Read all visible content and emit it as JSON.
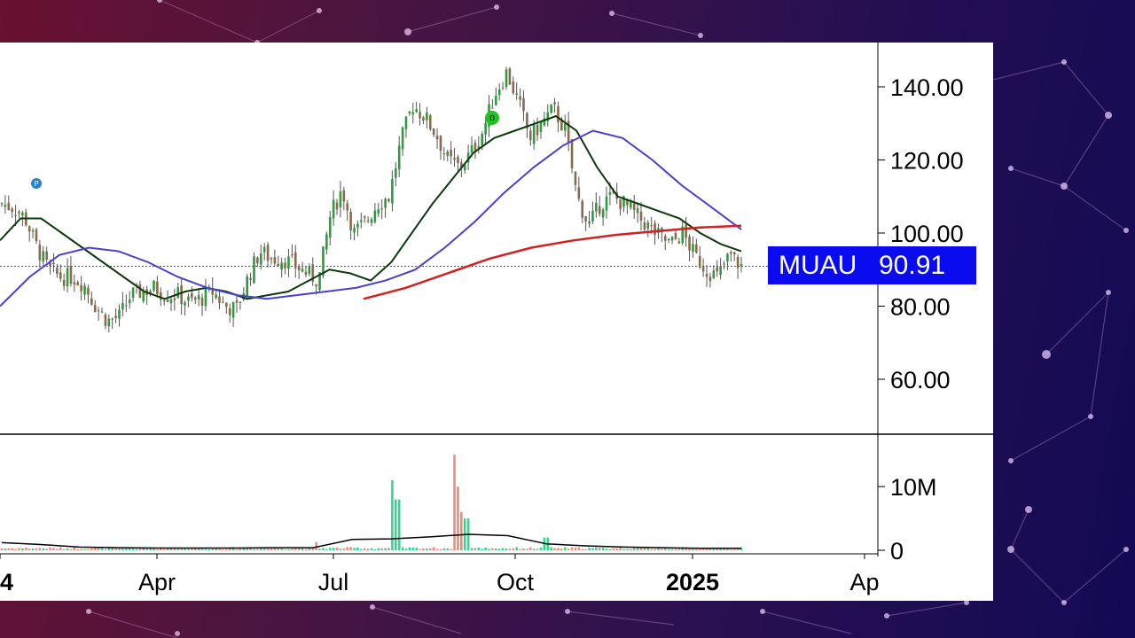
{
  "chart_data": {
    "type": "candlestick",
    "symbol": "MUAU",
    "last_price": "90.91",
    "price_axis": {
      "ticks": [
        "140.00",
        "120.00",
        "100.00",
        "80.00",
        "60.00"
      ],
      "tick_values": [
        140,
        120,
        100,
        80,
        60
      ],
      "range": [
        45,
        150
      ]
    },
    "volume_axis": {
      "ticks": [
        "10M",
        "0"
      ],
      "tick_values": [
        10000000,
        0
      ],
      "range": [
        0,
        16000000
      ]
    },
    "x_axis": {
      "ticks": [
        "4",
        "Apr",
        "Jul",
        "Oct",
        "2025",
        "Ap"
      ],
      "bold_ticks": [
        "4",
        "2025"
      ]
    },
    "markers": [
      {
        "label": "P",
        "color": "#2a7fd6"
      },
      {
        "label": "D",
        "color": "#22c022"
      }
    ],
    "series": [
      {
        "name": "price",
        "kind": "ohlc",
        "approx_close_path": [
          108,
          107,
          104,
          96,
          90,
          88,
          88,
          86,
          80,
          76,
          77,
          83,
          84,
          85,
          83,
          83,
          81,
          82,
          84,
          80,
          79,
          88,
          95,
          93,
          93,
          91,
          89,
          87,
          105,
          112,
          100,
          103,
          108,
          110,
          125,
          135,
          132,
          127,
          120,
          118,
          122,
          128,
          138,
          144,
          136,
          126,
          130,
          134,
          128,
          110,
          102,
          108,
          110,
          108,
          105,
          102,
          99,
          97,
          100,
          94,
          90,
          88,
          94,
          90.91
        ]
      },
      {
        "name": "",
        "kind": "moving-average",
        "color": "#0d3a0d",
        "approx_values": [
          98,
          104,
          104,
          100,
          96,
          92,
          88,
          84,
          82,
          84,
          85,
          84,
          82,
          83,
          84,
          87,
          90,
          89,
          87,
          92,
          100,
          108,
          115,
          122,
          126,
          128,
          130,
          132,
          128,
          118,
          110,
          108,
          106,
          104,
          100,
          97,
          95
        ]
      },
      {
        "name": "",
        "kind": "moving-average",
        "color": "#4a3fd0",
        "approx_values": [
          80,
          88,
          94,
          96,
          95,
          92,
          88,
          85,
          83,
          82,
          83,
          84,
          85,
          87,
          90,
          96,
          103,
          111,
          118,
          124,
          128,
          126,
          120,
          113,
          107,
          101
        ]
      },
      {
        "name": "",
        "kind": "moving-average",
        "color": "#d42020",
        "approx_values": [
          82,
          85,
          89,
          93,
          96,
          98,
          99.5,
          100.5,
          101.5,
          102
        ]
      }
    ],
    "volume_ma": {
      "color": "#000000"
    },
    "reference_line": {
      "value": 90.91,
      "style": "dotted"
    }
  }
}
